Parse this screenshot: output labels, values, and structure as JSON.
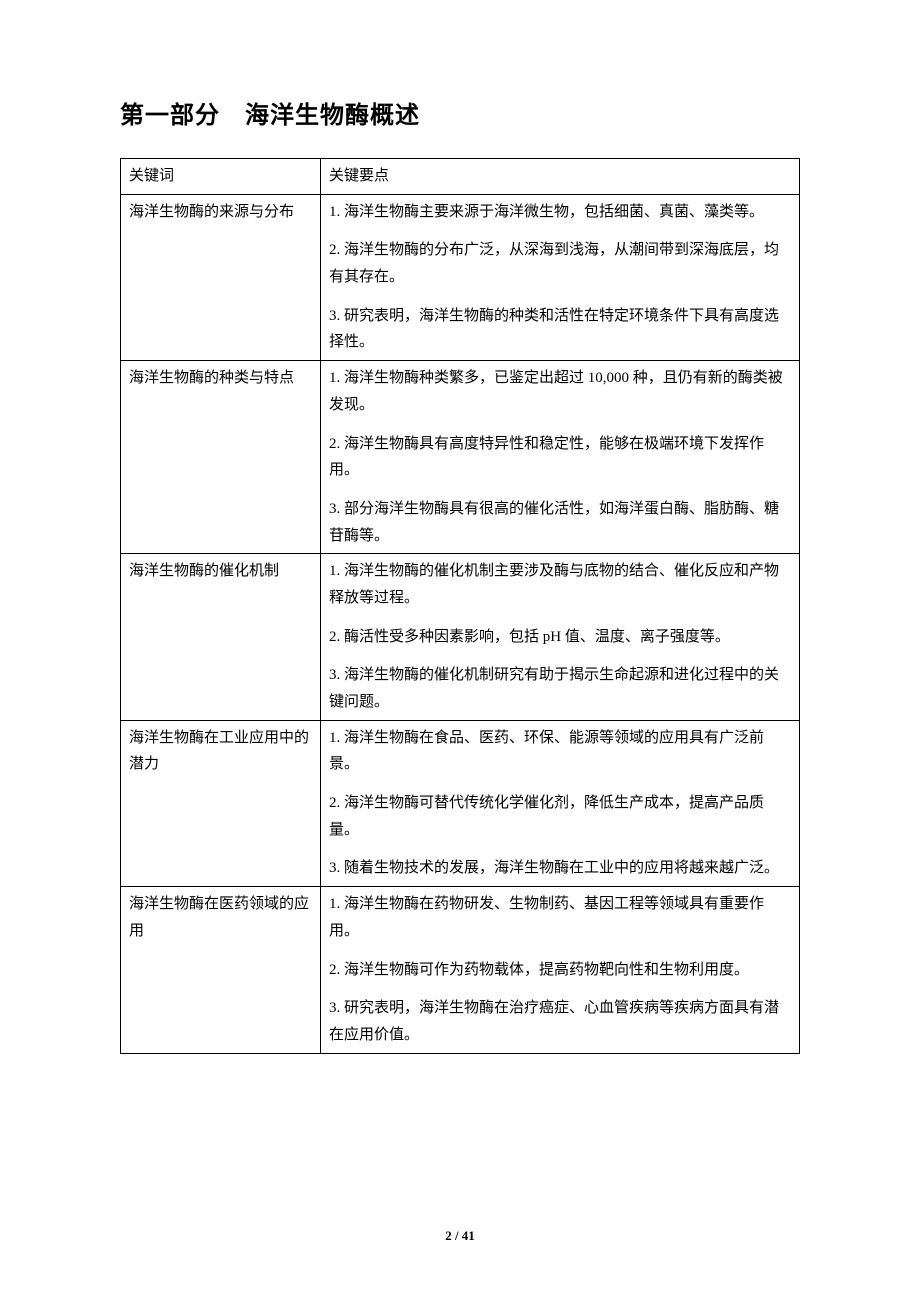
{
  "section_title": "第一部分　海洋生物酶概述",
  "table": {
    "header": {
      "col1": "关键词",
      "col2": "关键要点"
    },
    "rows": [
      {
        "keyword": "海洋生物酶的来源与分布",
        "points": [
          "1. 海洋生物酶主要来源于海洋微生物，包括细菌、真菌、藻类等。",
          "2. 海洋生物酶的分布广泛，从深海到浅海，从潮间带到深海底层，均有其存在。",
          "3. 研究表明，海洋生物酶的种类和活性在特定环境条件下具有高度选择性。"
        ]
      },
      {
        "keyword": "海洋生物酶的种类与特点",
        "points": [
          "1. 海洋生物酶种类繁多，已鉴定出超过 10,000 种，且仍有新的酶类被发现。",
          "2. 海洋生物酶具有高度特异性和稳定性，能够在极端环境下发挥作用。",
          "3. 部分海洋生物酶具有很高的催化活性，如海洋蛋白酶、脂肪酶、糖苷酶等。"
        ]
      },
      {
        "keyword": "海洋生物酶的催化机制",
        "points": [
          "1. 海洋生物酶的催化机制主要涉及酶与底物的结合、催化反应和产物释放等过程。",
          "2. 酶活性受多种因素影响，包括 pH 值、温度、离子强度等。",
          "3. 海洋生物酶的催化机制研究有助于揭示生命起源和进化过程中的关键问题。"
        ]
      },
      {
        "keyword": "海洋生物酶在工业应用中的潜力",
        "points": [
          "1. 海洋生物酶在食品、医药、环保、能源等领域的应用具有广泛前景。",
          "2. 海洋生物酶可替代传统化学催化剂，降低生产成本，提高产品质量。",
          "3. 随着生物技术的发展，海洋生物酶在工业中的应用将越来越广泛。"
        ]
      },
      {
        "keyword": "海洋生物酶在医药领域的应用",
        "points": [
          "1. 海洋生物酶在药物研发、生物制药、基因工程等领域具有重要作用。",
          "2. 海洋生物酶可作为药物载体，提高药物靶向性和生物利用度。",
          "3. 研究表明，海洋生物酶在治疗癌症、心血管疾病等疾病方面具有潜在应用价值。"
        ]
      }
    ]
  },
  "footer": "2 / 41"
}
